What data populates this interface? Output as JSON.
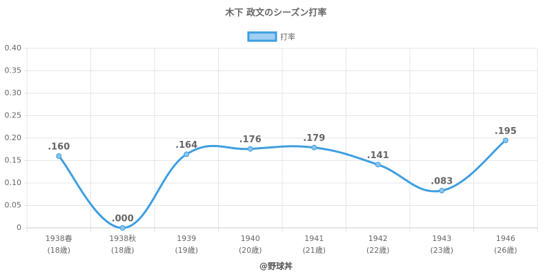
{
  "chart_data": {
    "type": "line",
    "title": "木下 政文のシーズン打率",
    "categories": [
      [
        "1938春",
        "(18歳)"
      ],
      [
        "1938秋",
        "(18歳)"
      ],
      [
        "1939",
        "(19歳)"
      ],
      [
        "1940",
        "(20歳)"
      ],
      [
        "1941",
        "(21歳)"
      ],
      [
        "1942",
        "(22歳)"
      ],
      [
        "1943",
        "(23歳)"
      ],
      [
        "1946",
        "(26歳)"
      ]
    ],
    "series": [
      {
        "name": "打率",
        "color": "#3d9ee0",
        "values": [
          0.16,
          0.0,
          0.164,
          0.176,
          0.179,
          0.141,
          0.083,
          0.195
        ],
        "value_labels": [
          ".160",
          ".000",
          ".164",
          ".176",
          ".179",
          ".141",
          ".083",
          ".195"
        ]
      }
    ],
    "ylim": [
      0,
      0.4
    ],
    "yticks": [
      0,
      0.05,
      {
        "value": 0.1,
        "label": "0.10"
      },
      0.15,
      {
        "value": 0.2,
        "label": "0.20"
      },
      0.25,
      {
        "value": 0.3,
        "label": "0.30"
      },
      0.35,
      {
        "value": 0.4,
        "label": "0.40"
      }
    ],
    "grid": true,
    "credit": "@野球丼"
  }
}
